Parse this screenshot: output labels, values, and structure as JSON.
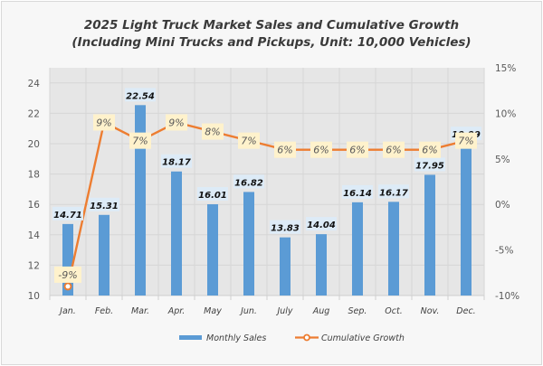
{
  "chart_data": {
    "type": "bar",
    "title": "2025 Light Truck Market Sales and Cumulative Growth",
    "subtitle": "(Including Mini Trucks and Pickups, Unit: 10,000 Vehicles)",
    "categories": [
      "Jan.",
      "Feb.",
      "Mar.",
      "Apr.",
      "May",
      "Jun.",
      "July",
      "Aug",
      "Sep.",
      "Oct.",
      "Nov.",
      "Dec."
    ],
    "series": [
      {
        "name": "Monthly Sales",
        "type": "bar",
        "axis": "left",
        "color": "#5b9bd5",
        "values": [
          14.71,
          15.31,
          22.54,
          18.17,
          16.01,
          16.82,
          13.83,
          14.04,
          16.14,
          16.17,
          17.95,
          19.99
        ],
        "labels": [
          "14.71",
          "15.31",
          "22.54",
          "18.17",
          "16.01",
          "16.82",
          "13.83",
          "14.04",
          "16.14",
          "16.17",
          "17.95",
          "19.99"
        ]
      },
      {
        "name": "Cumulative Growth",
        "type": "line",
        "axis": "right",
        "color": "#ed7d31",
        "values": [
          -9,
          9,
          7,
          9,
          8,
          7,
          6,
          6,
          6,
          6,
          6,
          7
        ],
        "labels": [
          "-9%",
          "9%",
          "7%",
          "9%",
          "8%",
          "7%",
          "6%",
          "6%",
          "6%",
          "6%",
          "6%",
          "7%"
        ]
      }
    ],
    "y_left": {
      "label": "",
      "ylim": [
        10,
        25
      ],
      "ticks": [
        10,
        12,
        14,
        16,
        18,
        20,
        22,
        24
      ]
    },
    "y_right": {
      "label": "",
      "ylim": [
        -10,
        15
      ],
      "ticks": [
        "-10%",
        "-5%",
        "0%",
        "5%",
        "10%",
        "15%"
      ],
      "tick_values": [
        -10,
        -5,
        0,
        5,
        10,
        15
      ]
    },
    "xlabel": "",
    "grid": true,
    "legend": {
      "position": "bottom",
      "entries": [
        "Monthly Sales",
        "Cumulative Growth"
      ]
    },
    "colors": {
      "bar_label_bg": "#ddebf7",
      "growth_label_bg": "#fff2cc",
      "plot_bg": "#e6e6e6",
      "grid": "#d6d6d6"
    }
  }
}
